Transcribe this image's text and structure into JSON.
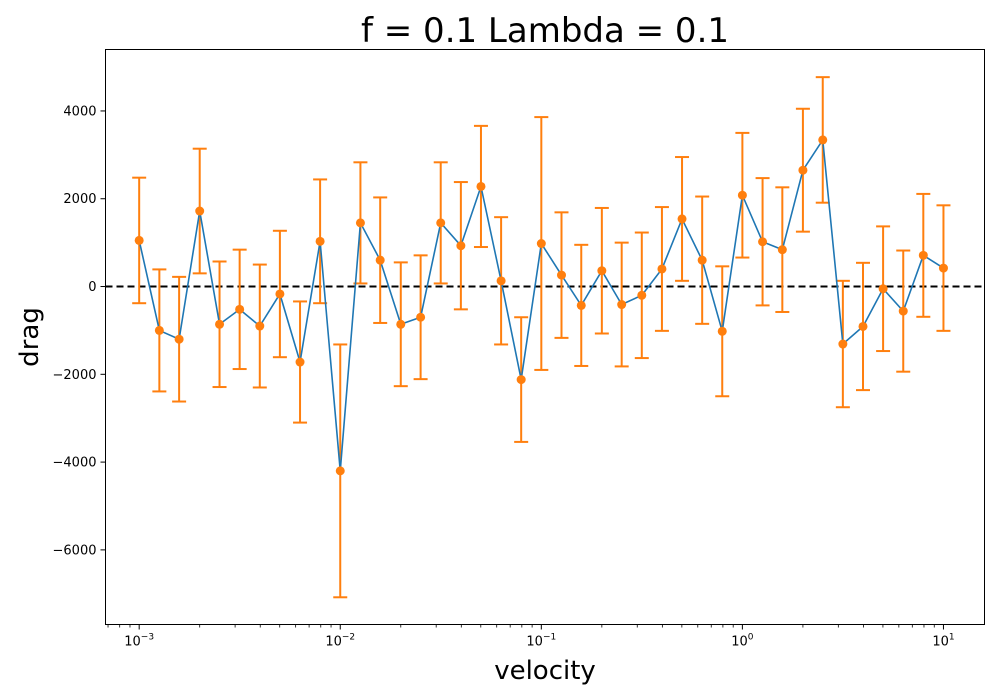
{
  "chart_data": {
    "type": "line",
    "title": "f = 0.1 Lambda = 0.1",
    "xlabel": "velocity",
    "ylabel": "drag",
    "xscale": "log",
    "xlim": [
      0.00068,
      16
    ],
    "ylim": [
      -7700,
      5400
    ],
    "grid": false,
    "reference_line": {
      "y": 0,
      "style": "dashed",
      "color": "#000000"
    },
    "x_ticks": [
      {
        "value": 0.001,
        "base": "10",
        "exp": "−3"
      },
      {
        "value": 0.01,
        "base": "10",
        "exp": "−2"
      },
      {
        "value": 0.1,
        "base": "10",
        "exp": "−1"
      },
      {
        "value": 1,
        "base": "10",
        "exp": "0"
      },
      {
        "value": 10,
        "base": "10",
        "exp": "1"
      }
    ],
    "y_ticks": [
      {
        "value": 4000,
        "label": "4000"
      },
      {
        "value": 2000,
        "label": "2000"
      },
      {
        "value": 0,
        "label": "0"
      },
      {
        "value": -2000,
        "label": "−2000"
      },
      {
        "value": -4000,
        "label": "−4000"
      },
      {
        "value": -6000,
        "label": "−6000"
      }
    ],
    "colors": {
      "line": "#1f77b4",
      "marker": "#ff7f0e",
      "errorbar": "#ff7f0e"
    },
    "series": [
      {
        "x": [
          0.001,
          0.00126,
          0.00158,
          0.002,
          0.00251,
          0.00316,
          0.00398,
          0.00501,
          0.00631,
          0.00794,
          0.01,
          0.0126,
          0.0158,
          0.02,
          0.0251,
          0.0316,
          0.0398,
          0.0501,
          0.0631,
          0.0794,
          0.1,
          0.126,
          0.158,
          0.2,
          0.251,
          0.316,
          0.398,
          0.501,
          0.631,
          0.794,
          1,
          1.26,
          1.58,
          2,
          2.51,
          3.16,
          3.98,
          5.01,
          6.31,
          7.94,
          10
        ],
        "y": [
          1050,
          -1000,
          -1200,
          1720,
          -860,
          -520,
          -900,
          -170,
          -1720,
          1030,
          -4200,
          1450,
          600,
          -860,
          -700,
          1450,
          930,
          2280,
          130,
          -2120,
          980,
          260,
          -430,
          360,
          -410,
          -200,
          400,
          1540,
          600,
          -1020,
          2080,
          1020,
          840,
          2650,
          3340,
          -1310,
          -910,
          -50,
          -560,
          710,
          420
        ],
        "err": [
          1430,
          1390,
          1420,
          1420,
          1430,
          1360,
          1400,
          1440,
          1380,
          1410,
          2880,
          1380,
          1430,
          1410,
          1410,
          1380,
          1450,
          1380,
          1450,
          1420,
          2880,
          1430,
          1380,
          1430,
          1410,
          1430,
          1410,
          1410,
          1450,
          1480,
          1420,
          1450,
          1420,
          1400,
          1430,
          1440,
          1450,
          1420,
          1380,
          1400,
          1430
        ]
      }
    ]
  }
}
